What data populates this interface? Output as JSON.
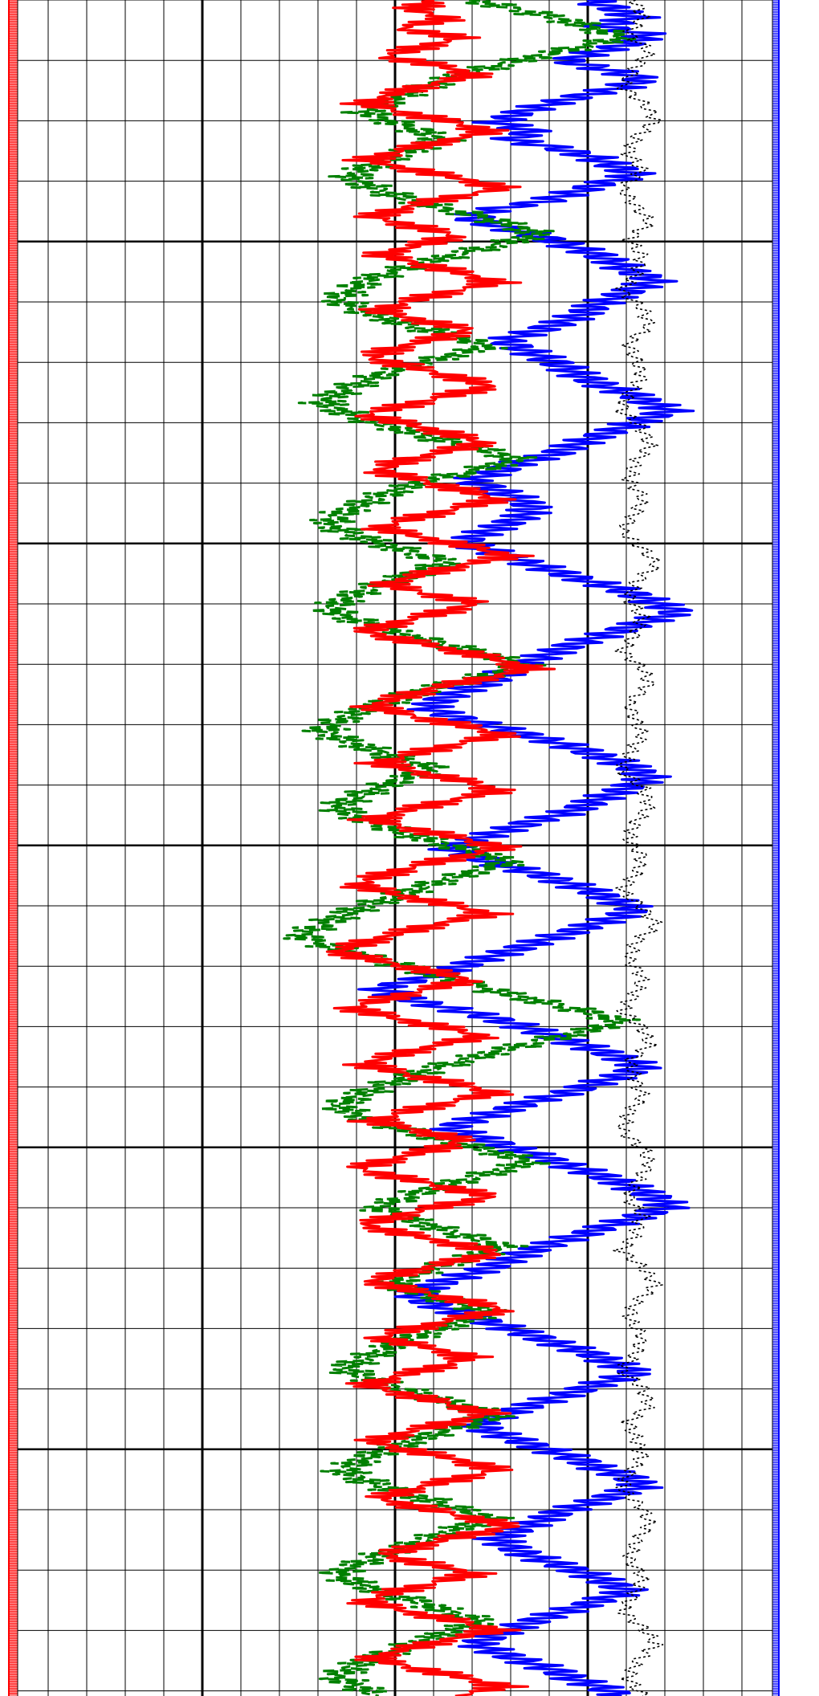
{
  "chart_data": [
    {
      "type": "line",
      "title": "",
      "orientation": "vertical-depth",
      "xlabel": "",
      "ylabel": "",
      "xlim": [
        0,
        10
      ],
      "grid": true,
      "legend": "none",
      "series": [
        {
          "style": "solid",
          "color": "#0000ff",
          "samples": [
            8.2,
            8.6,
            8.9,
            8.4,
            9.1,
            8.8,
            8.3,
            7.9,
            8.5,
            9.0,
            8.7,
            8.1,
            7.6,
            7.2,
            6.9,
            7.4,
            7.1,
            7.8,
            8.3,
            8.6,
            8.9,
            8.4,
            8.0,
            7.6,
            6.8,
            6.5,
            7.0,
            7.5,
            7.9,
            8.3,
            8.6,
            8.8,
            9.2,
            8.9,
            8.6,
            8.3,
            8.1,
            7.8,
            7.4,
            7.0,
            7.3,
            7.6,
            7.9,
            8.1,
            8.4,
            8.8,
            9.1,
            9.4,
            9.0,
            8.7,
            8.3,
            8.0,
            7.7,
            7.2,
            6.9,
            6.5,
            6.9,
            7.2,
            7.4,
            7.3,
            7.0,
            6.7,
            6.4,
            6.8,
            7.2,
            7.6,
            8.0,
            8.5,
            8.9,
            9.2,
            9.5,
            9.1,
            8.7,
            8.3,
            7.9,
            7.6,
            7.3,
            7.0,
            6.8,
            6.4,
            6.1,
            5.9,
            6.3,
            6.8,
            7.3,
            7.8,
            8.2,
            8.6,
            8.9,
            9.1,
            8.8,
            8.5,
            8.2,
            7.9,
            7.4,
            7.0,
            6.6,
            6.2,
            6.6,
            7.0,
            7.5,
            7.9,
            8.3,
            8.6,
            8.9,
            8.6,
            8.2,
            7.8,
            7.4,
            7.0,
            6.6,
            6.2,
            5.8,
            5.2,
            5.5,
            6.0,
            6.6,
            7.1,
            7.5,
            7.9,
            8.3,
            8.7,
            9.0,
            8.7,
            8.3,
            7.9,
            7.4,
            7.0,
            6.6,
            6.2,
            6.6,
            7.0,
            7.4,
            7.8,
            8.2,
            8.6,
            8.9,
            9.2,
            9.4,
            9.0,
            8.6,
            8.2,
            7.8,
            7.4,
            7.1,
            6.8,
            6.4,
            6.0,
            5.7,
            5.9,
            6.3,
            6.7,
            7.1,
            7.5,
            7.9,
            8.3,
            8.6,
            8.9,
            8.5,
            8.1,
            7.7,
            7.3,
            6.9,
            6.6,
            6.9,
            7.3,
            7.7,
            8.1,
            8.4,
            8.8,
            9.0,
            8.6,
            8.2,
            7.8,
            7.5,
            7.2,
            6.9,
            7.1,
            7.4,
            7.8,
            8.2,
            8.5,
            8.8,
            8.4,
            8.0,
            7.6,
            7.2,
            6.9,
            6.6,
            6.9,
            7.3,
            7.7,
            8.0,
            8.4,
            8.7
          ],
          "depth_step": "uniform"
        },
        {
          "style": "dashed",
          "color": "#008000",
          "samples": [
            6.5,
            7.2,
            7.8,
            8.3,
            8.7,
            8.1,
            7.5,
            6.9,
            6.4,
            6.0,
            5.6,
            5.3,
            5.0,
            5.4,
            5.8,
            6.1,
            5.7,
            5.3,
            5.0,
            4.8,
            5.1,
            5.5,
            6.0,
            6.6,
            7.1,
            7.5,
            7.0,
            6.4,
            5.9,
            5.4,
            5.0,
            4.8,
            4.6,
            4.9,
            5.3,
            5.8,
            6.3,
            6.8,
            6.2,
            5.7,
            5.2,
            4.9,
            4.6,
            4.4,
            4.7,
            5.1,
            5.6,
            6.1,
            6.7,
            7.2,
            6.7,
            6.1,
            5.6,
            5.2,
            4.9,
            4.6,
            4.5,
            4.8,
            5.2,
            5.7,
            6.2,
            5.8,
            5.4,
            5.0,
            4.7,
            4.5,
            4.8,
            5.2,
            5.7,
            6.3,
            6.8,
            7.3,
            6.8,
            6.2,
            5.7,
            5.3,
            4.9,
            4.6,
            4.4,
            4.7,
            5.1,
            5.5,
            6.0,
            5.6,
            5.2,
            4.9,
            4.6,
            4.8,
            5.2,
            5.6,
            6.1,
            6.6,
            7.1,
            6.6,
            6.1,
            5.7,
            5.3,
            4.9,
            4.6,
            4.3,
            4.1,
            4.5,
            5.0,
            5.5,
            6.0,
            6.5,
            7.0,
            7.6,
            8.2,
            8.7,
            8.2,
            7.6,
            7.0,
            6.5,
            6.0,
            5.6,
            5.2,
            4.9,
            4.6,
            4.9,
            5.3,
            5.8,
            6.3,
            6.9,
            7.4,
            6.9,
            6.4,
            5.9,
            5.5,
            5.2,
            5.6,
            6.0,
            6.5,
            7.0,
            6.6,
            6.1,
            5.7,
            5.4,
            5.8,
            6.3,
            6.8,
            6.4,
            6.0,
            5.6,
            5.3,
            5.0,
            4.7,
            5.0,
            5.4,
            5.9,
            6.4,
            6.9,
            6.5,
            6.0,
            5.6,
            5.2,
            4.9,
            4.7,
            5.0,
            5.4,
            5.9,
            6.3,
            6.8,
            6.4,
            6.0,
            5.6,
            5.2,
            4.9,
            4.6,
            4.9,
            5.3,
            5.8,
            6.2,
            6.7,
            6.3,
            5.9,
            5.5,
            5.1,
            4.8,
            4.6,
            4.9,
            5.2
          ],
          "depth_step": "uniform"
        },
        {
          "style": "solid",
          "color": "#ff0000",
          "samples": [
            6.0,
            5.7,
            6.2,
            5.5,
            6.4,
            5.8,
            5.3,
            6.1,
            6.6,
            5.9,
            5.4,
            5.0,
            5.6,
            6.3,
            6.8,
            6.1,
            5.5,
            5.0,
            5.7,
            6.4,
            7.0,
            6.2,
            5.6,
            5.1,
            5.7,
            6.3,
            5.8,
            5.2,
            5.8,
            6.4,
            6.9,
            6.2,
            5.6,
            5.2,
            5.8,
            6.5,
            6.0,
            5.4,
            5.1,
            5.7,
            6.3,
            6.8,
            6.2,
            5.6,
            5.0,
            5.6,
            6.2,
            6.7,
            6.1,
            5.5,
            5.2,
            5.8,
            6.4,
            6.9,
            6.3,
            5.7,
            5.2,
            5.8,
            6.5,
            7.1,
            6.4,
            5.8,
            5.3,
            5.9,
            6.6,
            6.1,
            5.5,
            5.0,
            5.6,
            6.3,
            6.9,
            7.4,
            6.7,
            6.0,
            5.5,
            5.1,
            5.7,
            6.4,
            7.0,
            6.3,
            5.7,
            5.2,
            5.8,
            6.5,
            6.9,
            6.2,
            5.6,
            5.1,
            5.7,
            6.4,
            7.0,
            6.3,
            5.7,
            5.2,
            4.9,
            5.5,
            6.2,
            6.8,
            6.1,
            5.5,
            5.0,
            4.6,
            5.2,
            5.9,
            6.5,
            5.9,
            5.3,
            4.8,
            5.4,
            6.1,
            6.7,
            6.0,
            5.4,
            5.0,
            5.6,
            6.3,
            6.9,
            6.2,
            5.6,
            5.1,
            5.8,
            6.4,
            6.0,
            5.4,
            4.9,
            5.5,
            6.2,
            6.8,
            6.1,
            5.5,
            5.0,
            5.6,
            6.3,
            6.9,
            6.2,
            5.6,
            5.1,
            5.7,
            6.4,
            7.0,
            6.3,
            5.7,
            5.2,
            5.9,
            6.5,
            6.1,
            5.5,
            5.0,
            5.6,
            6.2,
            6.8,
            6.2,
            5.6,
            5.1,
            5.7,
            6.4,
            6.9,
            6.3,
            5.7,
            5.2,
            5.8,
            6.5,
            7.1,
            6.4,
            5.8,
            5.3,
            5.9,
            6.6,
            6.0,
            5.4,
            5.0,
            5.6,
            6.3,
            6.9,
            6.2,
            5.6,
            5.1,
            5.7,
            6.4,
            7.0,
            6.3
          ],
          "depth_step": "uniform"
        },
        {
          "style": "dotted",
          "color": "#000000",
          "samples": [
            8.9,
            9.0,
            8.8,
            9.1,
            8.9,
            8.7,
            9.0,
            9.2,
            8.9,
            8.8,
            9.0,
            8.7,
            8.9,
            9.1,
            8.8,
            9.0,
            8.9,
            8.7,
            9.0,
            9.1,
            8.8,
            8.9,
            9.0,
            8.8,
            8.7,
            9.0,
            9.1,
            8.9,
            8.8,
            9.0,
            8.9,
            8.7,
            9.0,
            9.2,
            8.9,
            8.8,
            9.0,
            8.9,
            8.7,
            9.0,
            9.1,
            8.8,
            8.9,
            9.0,
            8.8,
            8.7,
            9.0,
            9.1,
            8.9,
            8.8,
            9.0,
            8.9,
            8.7,
            9.0,
            9.2,
            8.9,
            8.8,
            9.0,
            8.9,
            8.7,
            9.0,
            9.1,
            8.8,
            8.9,
            9.0,
            8.8,
            8.7,
            9.0,
            9.1,
            8.9,
            8.8,
            9.0,
            8.9,
            8.7,
            9.0,
            9.2,
            8.9,
            8.8,
            9.0,
            8.9,
            8.7,
            9.0,
            9.1,
            8.8,
            8.9,
            9.0,
            8.8,
            8.7,
            9.0,
            9.1,
            8.9,
            8.8,
            9.0,
            8.9,
            8.7,
            9.0,
            9.2,
            8.9,
            8.8,
            9.0
          ],
          "depth_step": "uniform"
        }
      ]
    }
  ],
  "tracks": {
    "left_track_color": "#ff0000",
    "right_track_color": "#0000ff",
    "major_grid_color": "#000000",
    "minor_grid_color": "#000000"
  }
}
